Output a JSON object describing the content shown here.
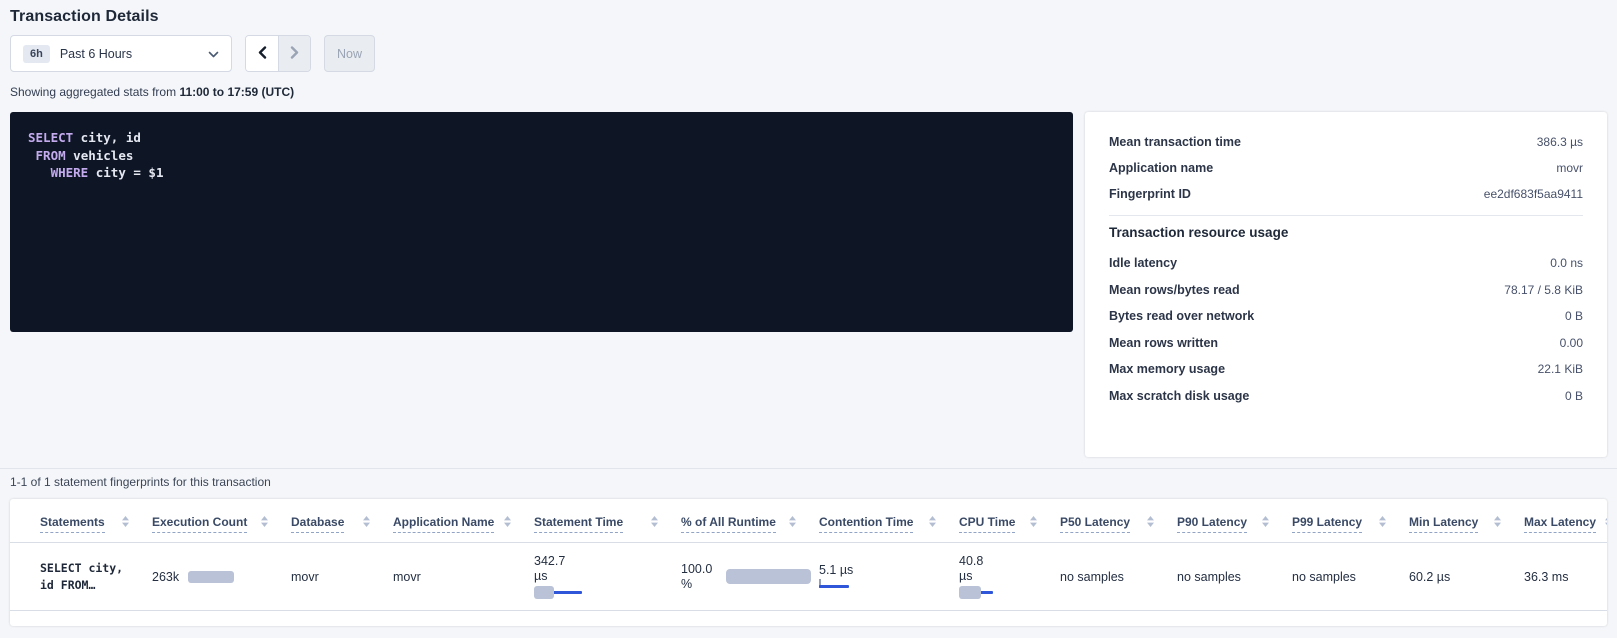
{
  "page": {
    "title": "Transaction Details"
  },
  "toolbar": {
    "range_badge": "6h",
    "range_label": "Past 6 Hours",
    "now_label": "Now"
  },
  "subtitle": {
    "prefix": "Showing aggregated stats from ",
    "bold_range": "11:00 to 17:59 (UTC)"
  },
  "sql": {
    "lines": [
      {
        "indent": 0,
        "keyword": "SELECT",
        "rest": " city, id"
      },
      {
        "indent": 1,
        "keyword": "FROM",
        "rest": " vehicles"
      },
      {
        "indent": 3,
        "keyword": "WHERE",
        "rest": " city = $1"
      }
    ]
  },
  "stats_panel": {
    "summary_rows": [
      {
        "label": "Mean transaction time",
        "value": "386.3 µs"
      },
      {
        "label": "Application name",
        "value": "movr"
      },
      {
        "label": "Fingerprint ID",
        "value": "ee2df683f5aa9411"
      }
    ],
    "resource_heading": "Transaction resource usage",
    "resource_rows": [
      {
        "label": "Idle latency",
        "value": "0.0 ns"
      },
      {
        "label": "Mean rows/bytes read",
        "value": "78.17 / 5.8 KiB"
      },
      {
        "label": "Bytes read over network",
        "value": "0 B"
      },
      {
        "label": "Mean rows written",
        "value": "0.00"
      },
      {
        "label": "Max memory usage",
        "value": "22.1 KiB"
      },
      {
        "label": "Max scratch disk usage",
        "value": "0 B"
      }
    ]
  },
  "statements_section": {
    "count_text": "1-1 of 1 statement fingerprints for this transaction",
    "columns": [
      "Statements",
      "Execution Count",
      "Database",
      "Application Name",
      "Statement Time",
      "% of All Runtime",
      "Contention Time",
      "CPU Time",
      "P50 Latency",
      "P90 Latency",
      "P99 Latency",
      "Min Latency",
      "Max Latency"
    ],
    "row": {
      "statement_line1": "SELECT city,",
      "statement_line2": "id FROM…",
      "execution_count": "263k",
      "database": "movr",
      "application_name": "movr",
      "statement_time": "342.7 µs",
      "pct_of_all_runtime": "100.0 %",
      "contention_time": "5.1 µs",
      "cpu_time": "40.8 µs",
      "p50_latency": "no samples",
      "p90_latency": "no samples",
      "p99_latency": "no samples",
      "min_latency": "60.2 µs",
      "max_latency": "36.3 ms"
    }
  },
  "icons": {
    "dropdown": "chevron-down-icon",
    "prev": "chevron-left-icon",
    "next": "chevron-right-icon",
    "sort": "sort-icon"
  },
  "colors": {
    "accent_blue": "#2f55d9",
    "bar_gray": "#b9c2d6",
    "code_background": "#0e1626",
    "code_keyword": "#c4abee",
    "page_background": "#f4f6f9"
  }
}
